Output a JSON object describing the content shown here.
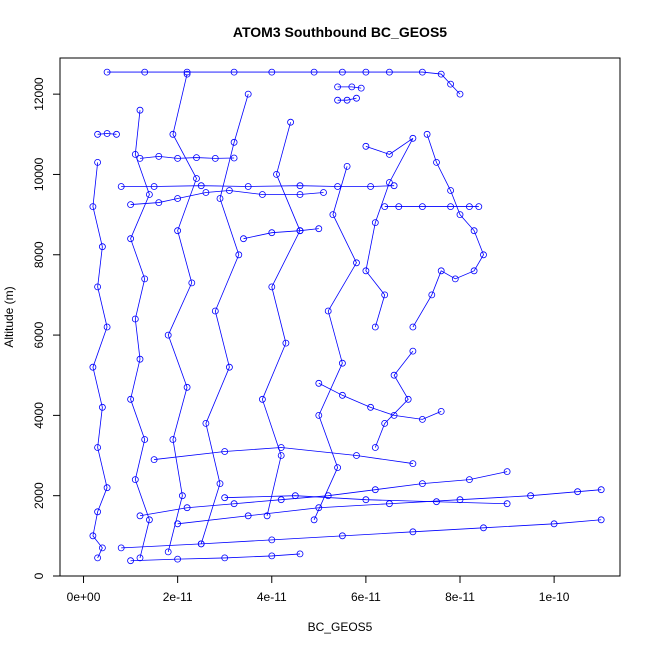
{
  "chart_data": {
    "type": "scatter",
    "title": "ATOM3 Southbound BC_GEOS5",
    "xlabel": "BC_GEOS5",
    "ylabel": "Altitude (m)",
    "xlim": [
      -5e-12,
      1.14e-10
    ],
    "ylim": [
      0,
      12900
    ],
    "x_ticks": [
      {
        "value": 0,
        "label": "0e+00"
      },
      {
        "value": 2e-11,
        "label": "2e-11"
      },
      {
        "value": 4e-11,
        "label": "4e-11"
      },
      {
        "value": 6e-11,
        "label": "6e-11"
      },
      {
        "value": 8e-11,
        "label": "8e-11"
      },
      {
        "value": 1e-10,
        "label": "1e-10"
      }
    ],
    "y_ticks": [
      {
        "value": 0,
        "label": "0"
      },
      {
        "value": 2000,
        "label": "2000"
      },
      {
        "value": 4000,
        "label": "4000"
      },
      {
        "value": 6000,
        "label": "6000"
      },
      {
        "value": 8000,
        "label": "8000"
      },
      {
        "value": 10000,
        "label": "10000"
      },
      {
        "value": 12000,
        "label": "12000"
      }
    ],
    "grid": false,
    "legend": "none",
    "marker": "open-circle",
    "color": "#0000ff",
    "series": [
      {
        "x": [
          1.2e-11,
          1.6e-11,
          2e-11,
          2.4e-11,
          2.8e-11,
          3.2e-11
        ],
        "y": [
          10400,
          10450,
          10400,
          10420,
          10400,
          10410
        ]
      },
      {
        "x": [
          8e-12,
          1.5e-11,
          2.5e-11,
          3.5e-11,
          4.6e-11,
          5.4e-11,
          6.1e-11,
          6.6e-11
        ],
        "y": [
          9700,
          9700,
          9720,
          9700,
          9720,
          9700,
          9700,
          9720
        ]
      },
      {
        "x": [
          1e-11,
          1.6e-11,
          2e-11,
          2.6e-11,
          3.1e-11,
          3.8e-11,
          4.6e-11,
          5.1e-11
        ],
        "y": [
          9250,
          9300,
          9400,
          9550,
          9600,
          9500,
          9500,
          9550
        ]
      },
      {
        "x": [
          5e-12,
          1.3e-11,
          2.2e-11,
          3.2e-11,
          4e-11,
          4.9e-11,
          5.5e-11,
          6e-11,
          6.5e-11,
          7.2e-11,
          7.6e-11,
          7.8e-11,
          8e-11
        ],
        "y": [
          12550,
          12550,
          12550,
          12550,
          12550,
          12550,
          12550,
          12550,
          12550,
          12550,
          12500,
          12250,
          12000
        ]
      },
      {
        "x": [
          5.4e-11,
          5.7e-11,
          5.9e-11
        ],
        "y": [
          12180,
          12180,
          12150
        ]
      },
      {
        "x": [
          5.4e-11,
          5.6e-11,
          5.8e-11
        ],
        "y": [
          11850,
          11850,
          11900
        ]
      },
      {
        "x": [
          3e-12,
          5e-12,
          7e-12
        ],
        "y": [
          11000,
          11020,
          11000
        ]
      },
      {
        "x": [
          3.4e-11,
          4e-11,
          4.6e-11,
          5e-11
        ],
        "y": [
          8400,
          8550,
          8600,
          8650
        ]
      },
      {
        "x": [
          6.4e-11,
          6.7e-11,
          7.2e-11,
          7.8e-11,
          8.2e-11,
          8.4e-11
        ],
        "y": [
          9200,
          9200,
          9200,
          9200,
          9200,
          9200
        ]
      },
      {
        "x": [
          7.3e-11,
          7.5e-11,
          7.8e-11,
          8e-11,
          8.3e-11,
          8.5e-11,
          8.3e-11,
          7.9e-11,
          7.6e-11,
          7.4e-11,
          7e-11
        ],
        "y": [
          11000,
          10300,
          9600,
          9000,
          8600,
          8000,
          7600,
          7400,
          7600,
          7000,
          6200
        ]
      },
      {
        "x": [
          6e-11,
          6.5e-11,
          7e-11,
          6.5e-11,
          6.2e-11,
          6e-11,
          6.4e-11,
          6.2e-11
        ],
        "y": [
          10700,
          10500,
          10900,
          9800,
          8800,
          7600,
          7000,
          6200
        ]
      },
      {
        "x": [
          3e-12,
          2e-12,
          4e-12,
          3e-12,
          5e-12,
          2e-12,
          4e-12,
          3e-12,
          5e-12,
          3e-12,
          2e-12,
          4e-12,
          3e-12
        ],
        "y": [
          10300,
          9200,
          8200,
          7200,
          6200,
          5200,
          4200,
          3200,
          2200,
          1600,
          1000,
          700,
          450
        ]
      },
      {
        "x": [
          1.2e-11,
          1.1e-11,
          1.4e-11,
          1e-11,
          1.3e-11,
          1.1e-11,
          1.2e-11,
          1e-11,
          1.3e-11,
          1.1e-11,
          1.4e-11,
          1.2e-11
        ],
        "y": [
          11600,
          10500,
          9500,
          8400,
          7400,
          6400,
          5400,
          4400,
          3400,
          2400,
          1400,
          450
        ]
      },
      {
        "x": [
          2.2e-11,
          1.9e-11,
          2.4e-11,
          2e-11,
          2.3e-11,
          1.8e-11,
          2.2e-11,
          1.9e-11,
          2.1e-11,
          1.8e-11
        ],
        "y": [
          12500,
          11000,
          9900,
          8600,
          7300,
          6000,
          4700,
          3400,
          2000,
          600
        ]
      },
      {
        "x": [
          3.5e-11,
          3.2e-11,
          2.9e-11,
          3.3e-11,
          2.8e-11,
          3.1e-11,
          2.6e-11,
          2.9e-11,
          2.5e-11
        ],
        "y": [
          12000,
          10800,
          9400,
          8000,
          6600,
          5200,
          3800,
          2300,
          800
        ]
      },
      {
        "x": [
          4.4e-11,
          4.1e-11,
          4.6e-11,
          4e-11,
          4.3e-11,
          3.8e-11,
          4.2e-11,
          3.9e-11
        ],
        "y": [
          11300,
          10000,
          8600,
          7200,
          5800,
          4400,
          3000,
          1500
        ]
      },
      {
        "x": [
          5.6e-11,
          5.3e-11,
          5.8e-11,
          5.2e-11,
          5.5e-11,
          5e-11,
          5.4e-11,
          4.9e-11
        ],
        "y": [
          10200,
          9000,
          7800,
          6600,
          5300,
          4000,
          2700,
          1400
        ]
      },
      {
        "x": [
          7e-11,
          6.6e-11,
          6.9e-11,
          6.4e-11,
          6.2e-11
        ],
        "y": [
          5600,
          5000,
          4400,
          3800,
          3200
        ]
      },
      {
        "x": [
          9e-11,
          8.2e-11,
          7.2e-11,
          6.2e-11,
          5.2e-11,
          4.2e-11,
          3.2e-11,
          2.2e-11,
          1.2e-11
        ],
        "y": [
          2600,
          2400,
          2300,
          2150,
          2000,
          1900,
          1800,
          1700,
          1500
        ]
      },
      {
        "x": [
          2e-11,
          3.5e-11,
          5e-11,
          6.5e-11,
          8e-11,
          9.5e-11,
          1.05e-10,
          1.1e-10
        ],
        "y": [
          1300,
          1500,
          1700,
          1800,
          1900,
          2000,
          2100,
          2150
        ]
      },
      {
        "x": [
          8e-12,
          2.5e-11,
          4e-11,
          5.5e-11,
          7e-11,
          8.5e-11,
          1e-10,
          1.1e-10
        ],
        "y": [
          700,
          800,
          900,
          1000,
          1100,
          1200,
          1300,
          1400
        ]
      },
      {
        "x": [
          3e-11,
          4.5e-11,
          6e-11,
          7.5e-11,
          9e-11
        ],
        "y": [
          1950,
          2000,
          1900,
          1850,
          1800
        ]
      },
      {
        "x": [
          1.5e-11,
          3e-11,
          4.2e-11,
          5.8e-11,
          7e-11
        ],
        "y": [
          2900,
          3100,
          3200,
          3000,
          2800
        ]
      },
      {
        "x": [
          1e-11,
          2e-11,
          3e-11,
          4e-11,
          4.6e-11
        ],
        "y": [
          380,
          420,
          450,
          500,
          550
        ]
      },
      {
        "x": [
          5e-11,
          5.5e-11,
          6.1e-11,
          6.6e-11,
          7.2e-11,
          7.6e-11
        ],
        "y": [
          4800,
          4500,
          4200,
          4000,
          3900,
          4100
        ]
      }
    ]
  }
}
